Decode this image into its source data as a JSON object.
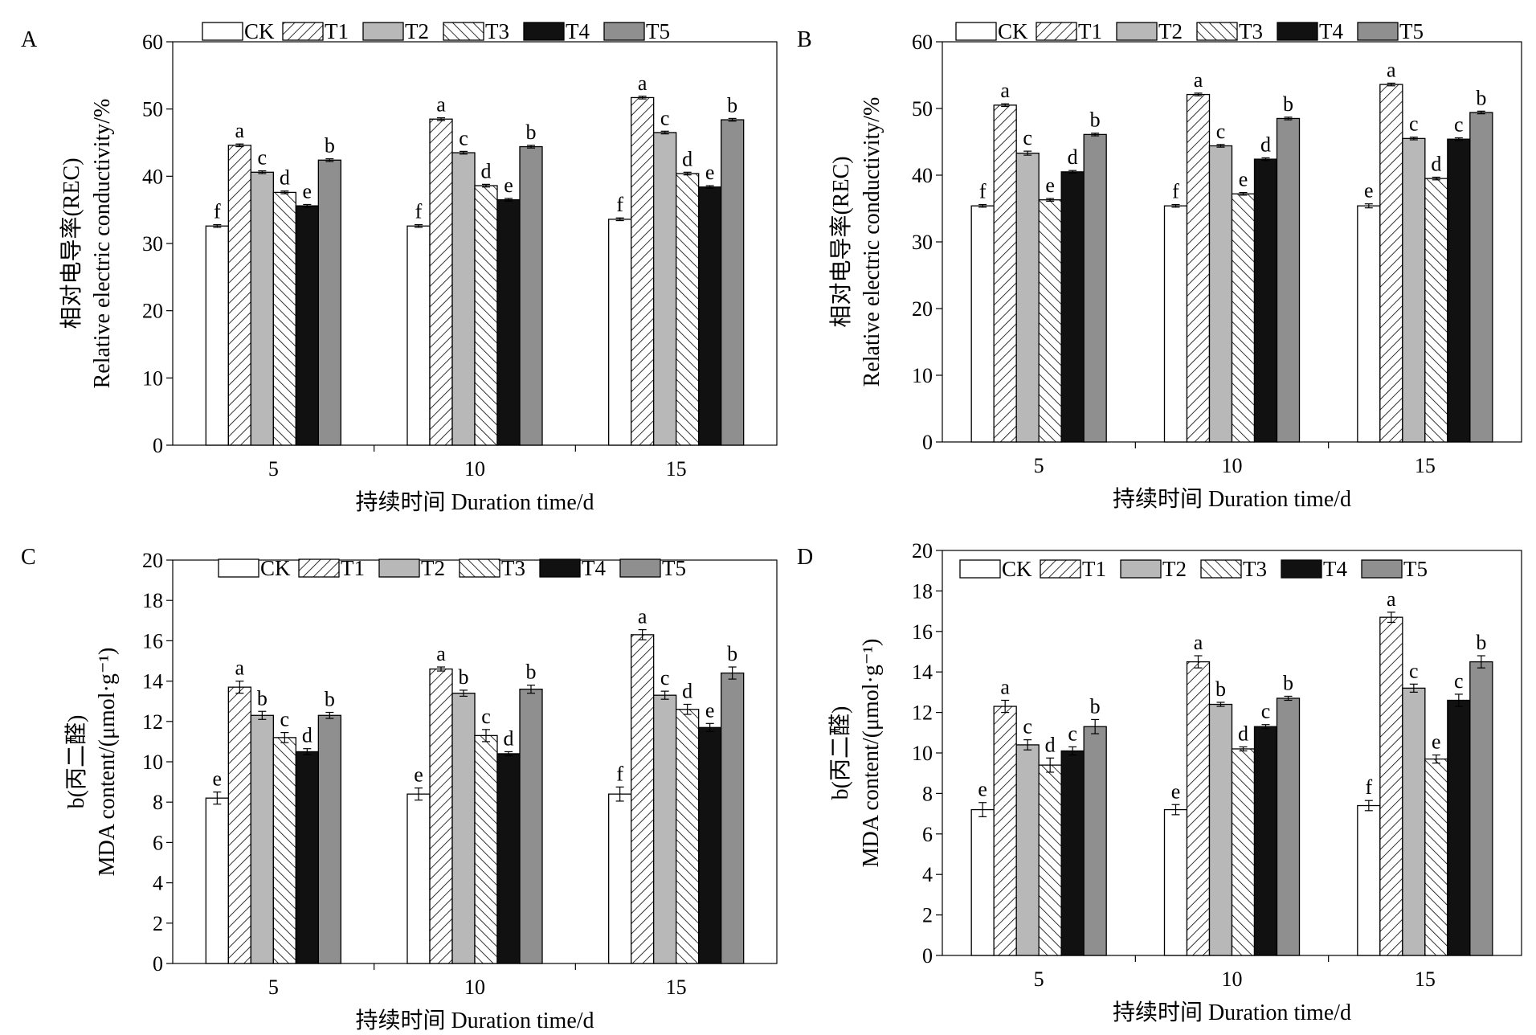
{
  "styles": {
    "CK": {
      "fill": "#ffffff",
      "pattern": "none"
    },
    "T1": {
      "fill": "#ffffff",
      "pattern": "diag-right"
    },
    "T2": {
      "fill": "#b8b8b8",
      "pattern": "none"
    },
    "T3": {
      "fill": "#ffffff",
      "pattern": "diag-left"
    },
    "T4": {
      "fill": "#111111",
      "pattern": "none"
    },
    "T5": {
      "fill": "#8f8f8f",
      "pattern": "none"
    }
  },
  "chart_data": [
    {
      "panel": "A",
      "type": "bar",
      "categories": [
        "5",
        "10",
        "15"
      ],
      "xlabel": "持续时间 Duration time/d",
      "ylabel_line1": "相对电导率(REC)",
      "ylabel_line2": "Relative electric conductivity/%",
      "ylim": [
        0,
        60
      ],
      "yticks": [
        0,
        10,
        20,
        30,
        40,
        50,
        60
      ],
      "legend_placement": "top",
      "series": [
        {
          "name": "CK",
          "values": [
            32.6,
            32.6,
            33.6
          ],
          "errors": [
            0.2,
            0.2,
            0.2
          ],
          "letters": [
            "f",
            "f",
            "f"
          ]
        },
        {
          "name": "T1",
          "values": [
            44.6,
            48.5,
            51.7
          ],
          "errors": [
            0.2,
            0.2,
            0.2
          ],
          "letters": [
            "a",
            "a",
            "a"
          ]
        },
        {
          "name": "T2",
          "values": [
            40.6,
            43.5,
            46.5
          ],
          "errors": [
            0.2,
            0.2,
            0.2
          ],
          "letters": [
            "c",
            "c",
            "c"
          ]
        },
        {
          "name": "T3",
          "values": [
            37.6,
            38.6,
            40.4
          ],
          "errors": [
            0.2,
            0.2,
            0.2
          ],
          "letters": [
            "d",
            "d",
            "d"
          ]
        },
        {
          "name": "T4",
          "values": [
            35.6,
            36.5,
            38.4
          ],
          "errors": [
            0.2,
            0.2,
            0.2
          ],
          "letters": [
            "e",
            "e",
            "e"
          ]
        },
        {
          "name": "T5",
          "values": [
            42.4,
            44.4,
            48.4
          ],
          "errors": [
            0.2,
            0.2,
            0.2
          ],
          "letters": [
            "b",
            "b",
            "b"
          ]
        }
      ]
    },
    {
      "panel": "B",
      "type": "bar",
      "categories": [
        "5",
        "10",
        "15"
      ],
      "xlabel": "持续时间 Duration time/d",
      "ylabel_line1": "相对电导率(REC)",
      "ylabel_line2": "Relative electric conductivity/%",
      "ylim": [
        0,
        60
      ],
      "yticks": [
        0,
        10,
        20,
        30,
        40,
        50,
        60
      ],
      "legend_placement": "top",
      "series": [
        {
          "name": "CK",
          "values": [
            35.4,
            35.4,
            35.4
          ],
          "errors": [
            0.2,
            0.2,
            0.3
          ],
          "letters": [
            "f",
            "f",
            "e"
          ]
        },
        {
          "name": "T1",
          "values": [
            50.5,
            52.1,
            53.6
          ],
          "errors": [
            0.2,
            0.2,
            0.2
          ],
          "letters": [
            "a",
            "a",
            "a"
          ]
        },
        {
          "name": "T2",
          "values": [
            43.3,
            44.4,
            45.5
          ],
          "errors": [
            0.3,
            0.2,
            0.2
          ],
          "letters": [
            "c",
            "c",
            "c"
          ]
        },
        {
          "name": "T3",
          "values": [
            36.3,
            37.2,
            39.5
          ],
          "errors": [
            0.2,
            0.2,
            0.2
          ],
          "letters": [
            "e",
            "e",
            "d"
          ]
        },
        {
          "name": "T4",
          "values": [
            40.5,
            42.4,
            45.4
          ],
          "errors": [
            0.2,
            0.2,
            0.2
          ],
          "letters": [
            "d",
            "d",
            "c"
          ]
        },
        {
          "name": "T5",
          "values": [
            46.1,
            48.5,
            49.4
          ],
          "errors": [
            0.2,
            0.2,
            0.2
          ],
          "letters": [
            "b",
            "b",
            "b"
          ]
        }
      ]
    },
    {
      "panel": "C",
      "type": "bar",
      "categories": [
        "5",
        "10",
        "15"
      ],
      "xlabel": "持续时间 Duration time/d",
      "ylabel_line1": "b(丙二醛)",
      "ylabel_line2": "MDA content/(μmol·g⁻¹)",
      "ylim": [
        0,
        20
      ],
      "yticks": [
        0,
        2,
        4,
        6,
        8,
        10,
        12,
        14,
        16,
        18,
        20
      ],
      "legend_placement": "top",
      "series": [
        {
          "name": "CK",
          "values": [
            8.2,
            8.4,
            8.4
          ],
          "errors": [
            0.3,
            0.3,
            0.35
          ],
          "letters": [
            "e",
            "e",
            "f"
          ]
        },
        {
          "name": "T1",
          "values": [
            13.7,
            14.6,
            16.3
          ],
          "errors": [
            0.3,
            0.1,
            0.25
          ],
          "letters": [
            "a",
            "a",
            "a"
          ]
        },
        {
          "name": "T2",
          "values": [
            12.3,
            13.4,
            13.3
          ],
          "errors": [
            0.2,
            0.15,
            0.2
          ],
          "letters": [
            "b",
            "b",
            "c"
          ]
        },
        {
          "name": "T3",
          "values": [
            11.2,
            11.3,
            12.6
          ],
          "errors": [
            0.25,
            0.3,
            0.25
          ],
          "letters": [
            "c",
            "c",
            "d"
          ]
        },
        {
          "name": "T4",
          "values": [
            10.5,
            10.4,
            11.7
          ],
          "errors": [
            0.15,
            0.1,
            0.2
          ],
          "letters": [
            "d",
            "d",
            "e"
          ]
        },
        {
          "name": "T5",
          "values": [
            12.3,
            13.6,
            14.4
          ],
          "errors": [
            0.15,
            0.2,
            0.3
          ],
          "letters": [
            "b",
            "b",
            "b"
          ]
        }
      ]
    },
    {
      "panel": "D",
      "type": "bar",
      "categories": [
        "5",
        "10",
        "15"
      ],
      "xlabel": "持续时间 Duration time/d",
      "ylabel_line1": "b(丙二醛)",
      "ylabel_line2": "MDA content/(μmol·g⁻¹)",
      "ylim": [
        0,
        20
      ],
      "yticks": [
        0,
        2,
        4,
        6,
        8,
        10,
        12,
        14,
        16,
        18,
        20
      ],
      "legend_placement": "top",
      "series": [
        {
          "name": "CK",
          "values": [
            7.2,
            7.2,
            7.4
          ],
          "errors": [
            0.35,
            0.25,
            0.25
          ],
          "letters": [
            "e",
            "e",
            "f"
          ]
        },
        {
          "name": "T1",
          "values": [
            12.3,
            14.5,
            16.7
          ],
          "errors": [
            0.3,
            0.3,
            0.25
          ],
          "letters": [
            "a",
            "a",
            "a"
          ]
        },
        {
          "name": "T2",
          "values": [
            10.4,
            12.4,
            13.2
          ],
          "errors": [
            0.25,
            0.1,
            0.2
          ],
          "letters": [
            "c",
            "b",
            "c"
          ]
        },
        {
          "name": "T3",
          "values": [
            9.4,
            10.2,
            9.7
          ],
          "errors": [
            0.35,
            0.1,
            0.2
          ],
          "letters": [
            "d",
            "d",
            "e"
          ]
        },
        {
          "name": "T4",
          "values": [
            10.1,
            11.3,
            12.6
          ],
          "errors": [
            0.2,
            0.1,
            0.3
          ],
          "letters": [
            "c",
            "c",
            "c"
          ]
        },
        {
          "name": "T5",
          "values": [
            11.3,
            12.7,
            14.5
          ],
          "errors": [
            0.35,
            0.1,
            0.3
          ],
          "letters": [
            "b",
            "b",
            "b"
          ]
        }
      ]
    }
  ]
}
